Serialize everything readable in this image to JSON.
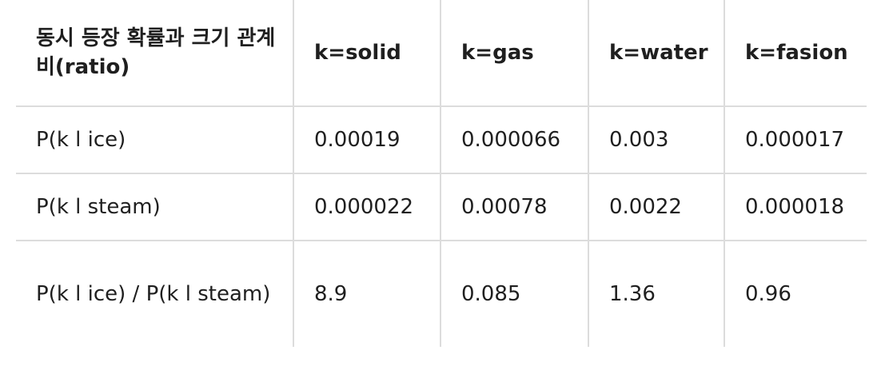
{
  "table": {
    "header": [
      "동시 등장 확률과 크기 관계 비(ratio)",
      "k=solid",
      "k=gas",
      "k=water",
      "k=fasion"
    ],
    "rows": [
      [
        "P(k l ice)",
        "0.00019",
        "0.000066",
        "0.003",
        "0.000017"
      ],
      [
        "P(k l steam)",
        "0.000022",
        "0.00078",
        "0.0022",
        "0.000018"
      ],
      [
        "P(k l ice) / P(k l steam)",
        "8.9",
        "0.085",
        "1.36",
        "0.96"
      ]
    ]
  }
}
